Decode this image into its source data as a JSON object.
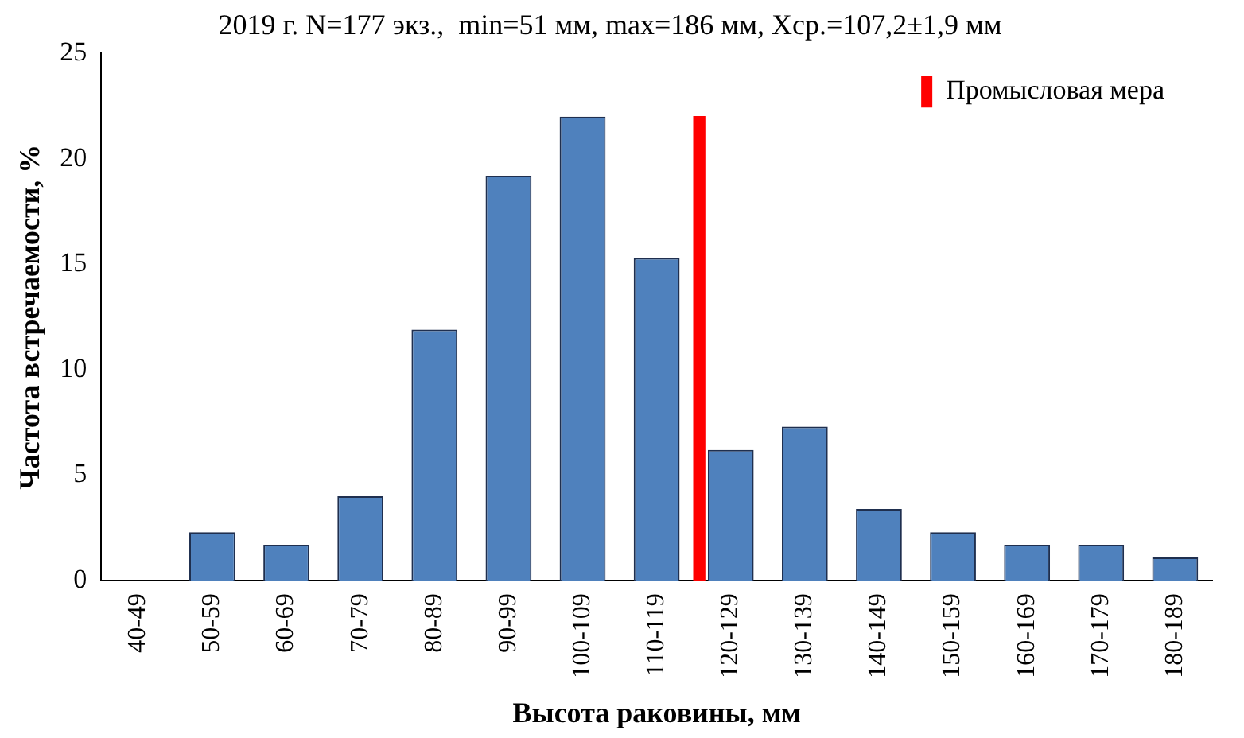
{
  "chart_data": {
    "type": "bar",
    "title": "2019 г. N=177 экз.,  min=51 мм, max=186 мм, Xср.=107,2±1,9 мм",
    "xlabel": "Высота раковины, мм",
    "ylabel": "Частота встречаемости, %",
    "categories": [
      "40-49",
      "50-59",
      "60-69",
      "70-79",
      "80-89",
      "90-99",
      "100-109",
      "110-119",
      "120-129",
      "130-139",
      "140-149",
      "150-159",
      "160-169",
      "170-179",
      "180-189"
    ],
    "series": [
      {
        "color": "#4f81bd",
        "values": [
          0,
          2.3,
          1.7,
          4.0,
          11.9,
          19.2,
          22.0,
          15.3,
          6.2,
          7.3,
          3.4,
          2.3,
          1.7,
          1.7,
          1.1
        ]
      },
      {
        "name": "Промысловая мера",
        "color": "#ff0000",
        "values": [
          null,
          null,
          null,
          null,
          null,
          null,
          null,
          null,
          22,
          null,
          null,
          null,
          null,
          null,
          null
        ]
      }
    ],
    "ylim": [
      0,
      25
    ],
    "yticks": [
      0,
      5,
      10,
      15,
      20,
      25
    ],
    "grid": false,
    "legend": "top right"
  }
}
